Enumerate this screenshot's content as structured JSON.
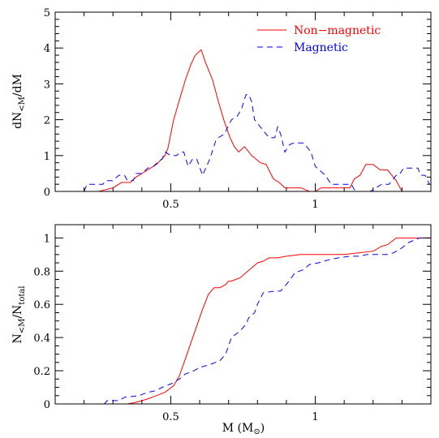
{
  "colors": {
    "non_magnetic": "#ff0000",
    "magnetic": "#0000ff",
    "axes": "#000000"
  },
  "chart_data": [
    {
      "type": "line",
      "panel": "top",
      "xlim": [
        0.1,
        1.4
      ],
      "ylim": [
        0,
        5
      ],
      "xticks": [
        0.5,
        1
      ],
      "xtick_labels": [
        "0.5",
        "1"
      ],
      "yticks": [
        0,
        1,
        2,
        3,
        4,
        5
      ],
      "ytick_labels": [
        "0",
        "1",
        "2",
        "3",
        "4",
        "5"
      ],
      "ylabel": {
        "main": "dN",
        "sub": "<M",
        "suffix": "/dM"
      },
      "legend": {
        "position": "top-right"
      },
      "series": [
        {
          "name": "Non−magnetic",
          "style": "solid",
          "x": [
            0.1,
            0.25,
            0.3,
            0.33,
            0.36,
            0.38,
            0.42,
            0.45,
            0.48,
            0.49,
            0.51,
            0.53,
            0.55,
            0.57,
            0.585,
            0.605,
            0.62,
            0.645,
            0.665,
            0.685,
            0.705,
            0.72,
            0.735,
            0.755,
            0.78,
            0.81,
            0.83,
            0.855,
            0.875,
            0.895,
            0.92,
            0.95,
            0.98,
            1.0,
            1.02,
            1.05,
            1.08,
            1.1,
            1.12,
            1.135,
            1.155,
            1.175,
            1.2,
            1.225,
            1.25,
            1.265,
            1.28,
            1.3,
            1.4
          ],
          "y": [
            0,
            0,
            0.1,
            0.25,
            0.25,
            0.4,
            0.6,
            0.75,
            1.0,
            1.2,
            2.0,
            2.55,
            3.1,
            3.55,
            3.8,
            3.95,
            3.6,
            3.1,
            2.5,
            1.95,
            1.5,
            1.25,
            1.1,
            1.25,
            1.0,
            0.8,
            0.75,
            0.35,
            0.25,
            0.1,
            0.1,
            0.1,
            0.0,
            0.0,
            0.1,
            0.1,
            0.1,
            0.1,
            0.1,
            0.35,
            0.45,
            0.75,
            0.75,
            0.6,
            0.6,
            0.45,
            0.3,
            0.0,
            0.0
          ]
        },
        {
          "name": "Magnetic",
          "style": "dashed",
          "x": [
            0.1,
            0.2,
            0.21,
            0.265,
            0.275,
            0.3,
            0.32,
            0.34,
            0.35,
            0.37,
            0.38,
            0.4,
            0.42,
            0.44,
            0.46,
            0.47,
            0.48,
            0.5,
            0.52,
            0.535,
            0.545,
            0.56,
            0.575,
            0.59,
            0.61,
            0.635,
            0.655,
            0.665,
            0.685,
            0.71,
            0.73,
            0.745,
            0.76,
            0.77,
            0.78,
            0.79,
            0.82,
            0.84,
            0.86,
            0.87,
            0.88,
            0.895,
            0.91,
            0.925,
            0.945,
            0.96,
            0.985,
            1.0,
            1.035,
            1.055,
            1.09,
            1.125,
            1.135,
            1.145,
            1.175,
            1.185,
            1.19,
            1.23,
            1.255,
            1.28,
            1.29,
            1.305,
            1.33,
            1.355,
            1.365,
            1.38,
            1.395
          ],
          "y": [
            0,
            0,
            0.2,
            0.2,
            0.3,
            0.3,
            0.45,
            0.45,
            0.3,
            0.3,
            0.5,
            0.5,
            0.65,
            0.7,
            0.85,
            0.9,
            1.1,
            1.0,
            1.0,
            1.1,
            1.1,
            0.7,
            0.9,
            0.9,
            0.45,
            0.9,
            1.4,
            1.5,
            1.6,
            2.0,
            2.1,
            2.3,
            2.7,
            2.7,
            2.5,
            2.0,
            1.7,
            1.5,
            1.5,
            1.8,
            1.6,
            1.1,
            1.3,
            1.35,
            1.35,
            1.35,
            1.1,
            0.7,
            0.45,
            0.2,
            0.2,
            0.2,
            0.05,
            0.0,
            0.0,
            0.0,
            0.0,
            0.2,
            0.2,
            0.45,
            0.45,
            0.65,
            0.65,
            0.65,
            0.45,
            0.45,
            0.2
          ]
        }
      ]
    },
    {
      "type": "line",
      "panel": "bottom",
      "xlim": [
        0.1,
        1.4
      ],
      "ylim": [
        0,
        1.08
      ],
      "xticks": [
        0.5,
        1
      ],
      "xtick_labels": [
        "0.5",
        "1"
      ],
      "yticks": [
        0,
        0.2,
        0.4,
        0.6,
        0.8,
        1
      ],
      "ytick_labels": [
        "0",
        "0.2",
        "0.4",
        "0.6",
        "0.8",
        "1"
      ],
      "xlabel": {
        "main": "M (M",
        "symbol": "⊙",
        "suffix": ")"
      },
      "ylabel": {
        "main1": "N",
        "sub1": "<M",
        "mid": "/N",
        "sub2": "total"
      },
      "series": [
        {
          "name": "Non−magnetic",
          "style": "solid",
          "x": [
            0.1,
            0.35,
            0.38,
            0.42,
            0.45,
            0.48,
            0.51,
            0.53,
            0.55,
            0.57,
            0.59,
            0.61,
            0.63,
            0.65,
            0.67,
            0.69,
            0.7,
            0.71,
            0.725,
            0.74,
            0.76,
            0.78,
            0.8,
            0.82,
            0.84,
            0.87,
            0.9,
            0.95,
            1.0,
            1.1,
            1.15,
            1.2,
            1.23,
            1.25,
            1.28,
            1.3,
            1.4
          ],
          "y": [
            0,
            0,
            0.01,
            0.03,
            0.05,
            0.07,
            0.11,
            0.17,
            0.27,
            0.37,
            0.47,
            0.57,
            0.66,
            0.7,
            0.7,
            0.72,
            0.74,
            0.74,
            0.75,
            0.76,
            0.79,
            0.82,
            0.85,
            0.86,
            0.88,
            0.88,
            0.89,
            0.9,
            0.9,
            0.9,
            0.91,
            0.92,
            0.95,
            0.96,
            1.0,
            1.0,
            1.0
          ]
        },
        {
          "name": "Magnetic",
          "style": "dashed",
          "x": [
            0.1,
            0.27,
            0.28,
            0.32,
            0.34,
            0.39,
            0.42,
            0.45,
            0.47,
            0.5,
            0.53,
            0.55,
            0.58,
            0.6,
            0.64,
            0.67,
            0.69,
            0.71,
            0.74,
            0.76,
            0.77,
            0.79,
            0.8,
            0.82,
            0.86,
            0.88,
            0.9,
            0.93,
            0.96,
            0.98,
            1.01,
            1.05,
            1.08,
            1.12,
            1.15,
            1.18,
            1.2,
            1.25,
            1.27,
            1.3,
            1.32,
            1.36,
            1.4
          ],
          "y": [
            0,
            0,
            0.02,
            0.02,
            0.04,
            0.05,
            0.07,
            0.08,
            0.1,
            0.12,
            0.15,
            0.18,
            0.2,
            0.22,
            0.24,
            0.26,
            0.3,
            0.4,
            0.44,
            0.48,
            0.52,
            0.55,
            0.6,
            0.67,
            0.68,
            0.68,
            0.72,
            0.79,
            0.81,
            0.84,
            0.85,
            0.87,
            0.88,
            0.89,
            0.89,
            0.9,
            0.9,
            0.9,
            0.91,
            0.94,
            0.97,
            1.0,
            1.0
          ]
        }
      ]
    }
  ]
}
